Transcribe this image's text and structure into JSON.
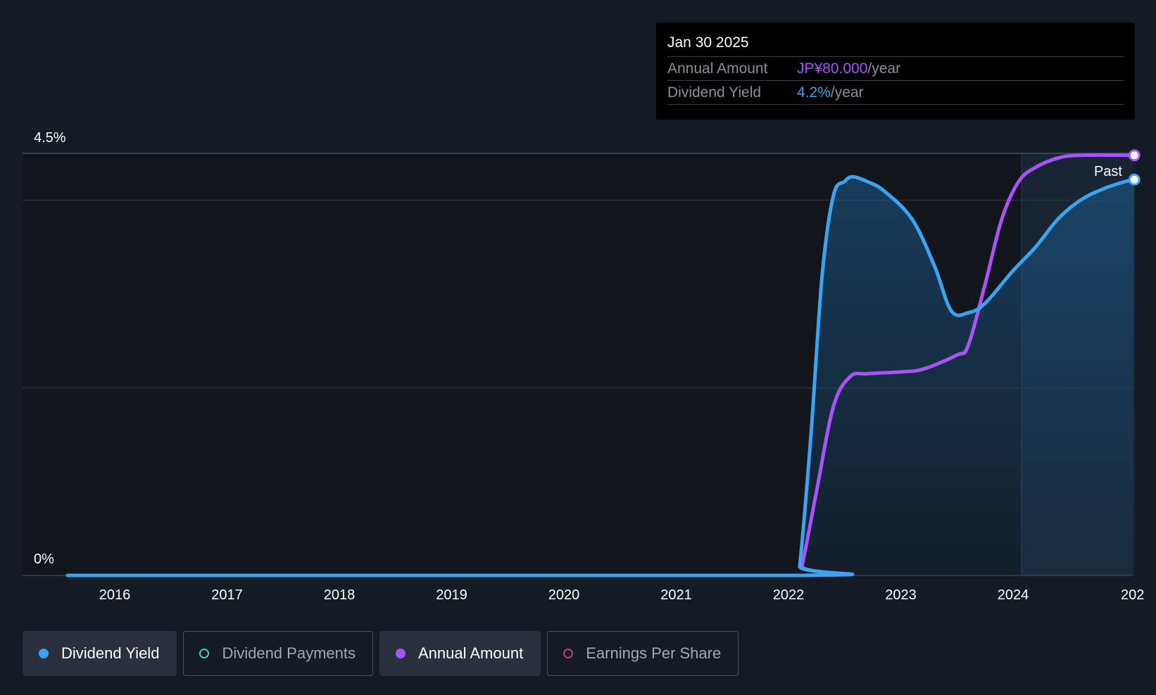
{
  "colors": {
    "background": "#151b25",
    "dividend_yield": "#3ba3f0",
    "annual_amount": "#a855f7",
    "dividend_payments": "#3fcfbf",
    "earnings_per_share": "#c2407a"
  },
  "tooltip": {
    "date": "Jan 30 2025",
    "rows": [
      {
        "label": "Annual Amount",
        "value": "JP¥80.000",
        "unit": "/year"
      },
      {
        "label": "Dividend Yield",
        "value": "4.2%",
        "unit": "/year"
      }
    ]
  },
  "chart_data": {
    "type": "line",
    "y_axis": {
      "min_label": "0%",
      "max_label": "4.5%",
      "ylim": [
        0,
        4.5
      ]
    },
    "x_axis": {
      "ticks": [
        "2016",
        "2017",
        "2018",
        "2019",
        "2020",
        "2021",
        "2022",
        "2023",
        "2024",
        "202"
      ],
      "xlim": [
        2015.58,
        2025.1
      ]
    },
    "past_label": "Past",
    "past_region_start": 2024.08,
    "series": [
      {
        "name": "Dividend Yield",
        "x": [
          2015.58,
          2022.07,
          2022.1,
          2022.2,
          2022.3,
          2022.4,
          2022.5,
          2022.57,
          2022.7,
          2022.85,
          2023.1,
          2023.3,
          2023.45,
          2023.6,
          2023.75,
          2024.0,
          2024.2,
          2024.4,
          2024.6,
          2024.8,
          2025.0,
          2025.08
        ],
        "values": [
          0,
          0,
          0.1,
          1.5,
          3.2,
          4.05,
          4.2,
          4.25,
          4.2,
          4.1,
          3.8,
          3.3,
          2.82,
          2.8,
          2.9,
          3.25,
          3.5,
          3.8,
          4.0,
          4.12,
          4.2,
          4.22
        ]
      },
      {
        "name": "Annual Amount",
        "x": [
          2015.58,
          2022.07,
          2022.12,
          2022.25,
          2022.4,
          2022.55,
          2022.7,
          2023.0,
          2023.2,
          2023.5,
          2023.6,
          2023.75,
          2023.9,
          2024.05,
          2024.2,
          2024.4,
          2024.6,
          2025.08
        ],
        "values": [
          0,
          0,
          0.1,
          0.9,
          1.8,
          2.12,
          2.15,
          2.17,
          2.2,
          2.35,
          2.45,
          3.1,
          3.8,
          4.2,
          4.35,
          4.45,
          4.48,
          4.48
        ]
      }
    ]
  },
  "legend": [
    {
      "label": "Dividend Yield",
      "active": true,
      "marker": "filled",
      "color": "#3ba3f0"
    },
    {
      "label": "Dividend Payments",
      "active": false,
      "marker": "hollow",
      "color": "#3fcfbf"
    },
    {
      "label": "Annual Amount",
      "active": true,
      "marker": "filled",
      "color": "#a855f7"
    },
    {
      "label": "Earnings Per Share",
      "active": false,
      "marker": "hollow",
      "color": "#c2407a"
    }
  ]
}
